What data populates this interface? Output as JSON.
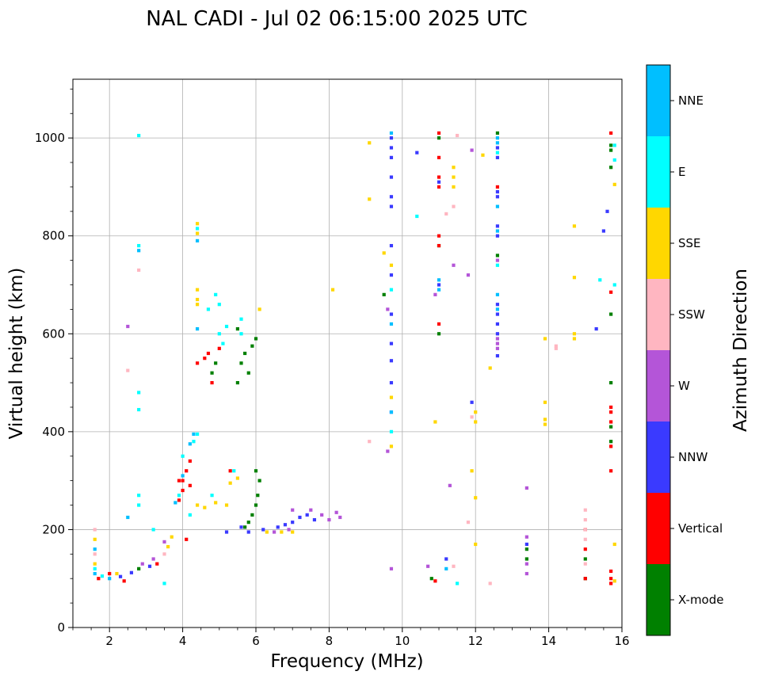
{
  "chart_data": {
    "type": "scatter",
    "title": "NAL CADI - Jul 02 06:15:00 2025 UTC",
    "xlabel": "Frequency (MHz)",
    "ylabel": "Virtual height (km)",
    "xlim": [
      1,
      16
    ],
    "ylim": [
      0,
      1120
    ],
    "xticks": [
      2,
      4,
      6,
      8,
      10,
      12,
      14,
      16
    ],
    "yticks": [
      0,
      200,
      400,
      600,
      800,
      1000
    ],
    "grid": true,
    "colorbar": {
      "label": "Azimuth Direction",
      "categories": [
        {
          "name": "X-mode",
          "color": "#008000"
        },
        {
          "name": "Vertical",
          "color": "#ff0000"
        },
        {
          "name": "NNW",
          "color": "#3a3aff"
        },
        {
          "name": "W",
          "color": "#b455d8"
        },
        {
          "name": "SSW",
          "color": "#ffb6c1"
        },
        {
          "name": "SSE",
          "color": "#ffd700"
        },
        {
          "name": "E",
          "color": "#00ffff"
        },
        {
          "name": "NNE",
          "color": "#00bfff"
        }
      ]
    },
    "series": [
      {
        "name": "X-mode",
        "points": [
          [
            5.5,
            500
          ],
          [
            5.6,
            540
          ],
          [
            5.8,
            520
          ],
          [
            5.7,
            560
          ],
          [
            5.9,
            575
          ],
          [
            6.0,
            590
          ],
          [
            5.5,
            610
          ],
          [
            6.0,
            250
          ],
          [
            6.05,
            270
          ],
          [
            6.1,
            300
          ],
          [
            6.0,
            320
          ],
          [
            5.9,
            230
          ],
          [
            5.8,
            215
          ],
          [
            5.7,
            205
          ],
          [
            15.0,
            100
          ],
          [
            15.0,
            140
          ],
          [
            15.7,
            640
          ],
          [
            15.7,
            500
          ],
          [
            15.7,
            380
          ],
          [
            15.7,
            410
          ],
          [
            15.7,
            940
          ],
          [
            15.7,
            975
          ],
          [
            15.7,
            985
          ],
          [
            12.6,
            1010
          ],
          [
            12.6,
            760
          ],
          [
            11.0,
            1000
          ],
          [
            11.0,
            600
          ],
          [
            11.0,
            780
          ],
          [
            9.5,
            680
          ],
          [
            10.8,
            100
          ],
          [
            13.4,
            140
          ],
          [
            13.4,
            160
          ],
          [
            4.9,
            540
          ],
          [
            4.8,
            520
          ],
          [
            2.8,
            120
          ]
        ]
      },
      {
        "name": "Vertical",
        "points": [
          [
            1.7,
            100
          ],
          [
            2.0,
            110
          ],
          [
            2.4,
            95
          ],
          [
            3.3,
            130
          ],
          [
            3.9,
            260
          ],
          [
            4.0,
            280
          ],
          [
            4.0,
            300
          ],
          [
            4.1,
            320
          ],
          [
            4.2,
            340
          ],
          [
            4.2,
            290
          ],
          [
            3.9,
            300
          ],
          [
            4.1,
            180
          ],
          [
            4.4,
            540
          ],
          [
            4.6,
            550
          ],
          [
            4.7,
            560
          ],
          [
            4.8,
            500
          ],
          [
            5.0,
            570
          ],
          [
            11.0,
            1010
          ],
          [
            11.0,
            960
          ],
          [
            11.0,
            920
          ],
          [
            11.0,
            900
          ],
          [
            11.0,
            800
          ],
          [
            11.0,
            780
          ],
          [
            11.0,
            620
          ],
          [
            12.6,
            900
          ],
          [
            15.0,
            160
          ],
          [
            15.0,
            100
          ],
          [
            15.0,
            200
          ],
          [
            15.7,
            450
          ],
          [
            15.7,
            440
          ],
          [
            15.7,
            420
          ],
          [
            15.7,
            370
          ],
          [
            15.7,
            320
          ],
          [
            15.7,
            1010
          ],
          [
            15.7,
            685
          ],
          [
            15.7,
            115
          ],
          [
            15.7,
            100
          ],
          [
            15.7,
            90
          ],
          [
            10.9,
            95
          ],
          [
            5.3,
            320
          ]
        ]
      },
      {
        "name": "NNW",
        "points": [
          [
            5.8,
            195
          ],
          [
            6.2,
            200
          ],
          [
            6.6,
            205
          ],
          [
            7.0,
            215
          ],
          [
            7.2,
            225
          ],
          [
            7.4,
            230
          ],
          [
            7.6,
            220
          ],
          [
            5.6,
            205
          ],
          [
            5.2,
            195
          ],
          [
            6.8,
            210
          ],
          [
            9.7,
            1000
          ],
          [
            9.7,
            980
          ],
          [
            9.7,
            960
          ],
          [
            9.7,
            920
          ],
          [
            9.7,
            880
          ],
          [
            9.7,
            860
          ],
          [
            9.7,
            780
          ],
          [
            9.7,
            720
          ],
          [
            9.7,
            640
          ],
          [
            9.7,
            545
          ],
          [
            9.7,
            500
          ],
          [
            9.7,
            440
          ],
          [
            9.7,
            580
          ],
          [
            12.6,
            980
          ],
          [
            12.6,
            960
          ],
          [
            12.6,
            890
          ],
          [
            12.6,
            880
          ],
          [
            12.6,
            820
          ],
          [
            12.6,
            800
          ],
          [
            12.6,
            660
          ],
          [
            12.6,
            640
          ],
          [
            12.6,
            620
          ],
          [
            12.6,
            600
          ],
          [
            12.6,
            555
          ],
          [
            11.0,
            700
          ],
          [
            11.0,
            910
          ],
          [
            11.9,
            460
          ],
          [
            15.6,
            850
          ],
          [
            15.5,
            810
          ],
          [
            15.3,
            610
          ],
          [
            11.2,
            140
          ],
          [
            13.4,
            170
          ],
          [
            2.6,
            112
          ],
          [
            3.1,
            125
          ],
          [
            2.3,
            104
          ],
          [
            10.4,
            970
          ]
        ]
      },
      {
        "name": "W",
        "points": [
          [
            7.0,
            240
          ],
          [
            7.8,
            230
          ],
          [
            8.2,
            235
          ],
          [
            8.0,
            220
          ],
          [
            7.5,
            240
          ],
          [
            8.3,
            225
          ],
          [
            6.5,
            195
          ],
          [
            6.9,
            200
          ],
          [
            12.6,
            580
          ],
          [
            12.6,
            570
          ],
          [
            12.6,
            590
          ],
          [
            12.6,
            750
          ],
          [
            13.4,
            130
          ],
          [
            13.4,
            185
          ],
          [
            13.4,
            110
          ],
          [
            13.4,
            285
          ],
          [
            9.6,
            650
          ],
          [
            9.6,
            360
          ],
          [
            10.7,
            125
          ],
          [
            11.8,
            720
          ],
          [
            10.9,
            680
          ],
          [
            11.3,
            290
          ],
          [
            11.9,
            975
          ],
          [
            11.4,
            740
          ],
          [
            2.9,
            130
          ],
          [
            3.2,
            140
          ],
          [
            3.5,
            175
          ],
          [
            2.5,
            615
          ],
          [
            9.7,
            120
          ]
        ]
      },
      {
        "name": "SSW",
        "points": [
          [
            15.0,
            180
          ],
          [
            15.0,
            220
          ],
          [
            15.0,
            240
          ],
          [
            15.0,
            130
          ],
          [
            15.0,
            200
          ],
          [
            14.2,
            575
          ],
          [
            14.2,
            570
          ],
          [
            12.4,
            90
          ],
          [
            11.8,
            215
          ],
          [
            11.9,
            430
          ],
          [
            11.2,
            845
          ],
          [
            11.4,
            860
          ],
          [
            11.5,
            1005
          ],
          [
            9.1,
            380
          ],
          [
            1.6,
            150
          ],
          [
            1.6,
            200
          ],
          [
            3.5,
            150
          ],
          [
            2.8,
            730
          ],
          [
            2.5,
            525
          ],
          [
            11.4,
            125
          ]
        ]
      },
      {
        "name": "SSE",
        "points": [
          [
            4.4,
            250
          ],
          [
            4.6,
            245
          ],
          [
            4.9,
            255
          ],
          [
            5.3,
            295
          ],
          [
            5.5,
            305
          ],
          [
            5.2,
            250
          ],
          [
            4.4,
            670
          ],
          [
            4.4,
            690
          ],
          [
            4.4,
            660
          ],
          [
            4.4,
            825
          ],
          [
            4.4,
            805
          ],
          [
            3.7,
            185
          ],
          [
            3.6,
            165
          ],
          [
            1.6,
            180
          ],
          [
            1.6,
            130
          ],
          [
            2.2,
            110
          ],
          [
            6.3,
            195
          ],
          [
            6.7,
            195
          ],
          [
            7.0,
            195
          ],
          [
            8.1,
            690
          ],
          [
            9.1,
            990
          ],
          [
            9.1,
            875
          ],
          [
            9.5,
            765
          ],
          [
            9.7,
            740
          ],
          [
            9.7,
            470
          ],
          [
            9.7,
            370
          ],
          [
            10.9,
            420
          ],
          [
            11.4,
            940
          ],
          [
            11.4,
            920
          ],
          [
            11.4,
            900
          ],
          [
            12.2,
            965
          ],
          [
            12.0,
            440
          ],
          [
            12.0,
            420
          ],
          [
            12.0,
            265
          ],
          [
            12.0,
            170
          ],
          [
            11.9,
            320
          ],
          [
            12.4,
            530
          ],
          [
            13.9,
            590
          ],
          [
            13.9,
            460
          ],
          [
            13.9,
            425
          ],
          [
            13.9,
            415
          ],
          [
            14.7,
            820
          ],
          [
            14.7,
            715
          ],
          [
            14.7,
            600
          ],
          [
            14.7,
            590
          ],
          [
            15.8,
            905
          ],
          [
            15.8,
            170
          ],
          [
            15.8,
            95
          ],
          [
            6.1,
            650
          ]
        ]
      },
      {
        "name": "E",
        "points": [
          [
            4.4,
            395
          ],
          [
            4.3,
            380
          ],
          [
            4.0,
            350
          ],
          [
            3.9,
            270
          ],
          [
            4.4,
            815
          ],
          [
            5.2,
            615
          ],
          [
            5.0,
            600
          ],
          [
            5.1,
            580
          ],
          [
            5.6,
            600
          ],
          [
            5.6,
            630
          ],
          [
            4.9,
            680
          ],
          [
            5.0,
            660
          ],
          [
            4.7,
            650
          ],
          [
            2.8,
            780
          ],
          [
            2.8,
            270
          ],
          [
            2.8,
            250
          ],
          [
            2.8,
            480
          ],
          [
            2.8,
            445
          ],
          [
            2.8,
            1005
          ],
          [
            3.2,
            200
          ],
          [
            3.5,
            90
          ],
          [
            4.2,
            230
          ],
          [
            4.8,
            270
          ],
          [
            5.4,
            320
          ],
          [
            9.7,
            400
          ],
          [
            9.7,
            690
          ],
          [
            10.4,
            840
          ],
          [
            11.5,
            90
          ],
          [
            12.6,
            970
          ],
          [
            15.4,
            710
          ],
          [
            15.8,
            700
          ],
          [
            15.8,
            955
          ],
          [
            15.8,
            985
          ],
          [
            12.6,
            740
          ],
          [
            1.6,
            120
          ],
          [
            1.8,
            105
          ]
        ]
      },
      {
        "name": "NNE",
        "points": [
          [
            4.4,
            610
          ],
          [
            4.4,
            790
          ],
          [
            4.3,
            395
          ],
          [
            4.2,
            375
          ],
          [
            4.0,
            310
          ],
          [
            3.8,
            255
          ],
          [
            1.6,
            110
          ],
          [
            1.6,
            160
          ],
          [
            2.0,
            100
          ],
          [
            2.8,
            770
          ],
          [
            12.6,
            1000
          ],
          [
            12.6,
            990
          ],
          [
            12.6,
            650
          ],
          [
            12.6,
            680
          ],
          [
            12.6,
            860
          ],
          [
            12.6,
            810
          ],
          [
            11.0,
            710
          ],
          [
            11.0,
            690
          ],
          [
            9.7,
            1010
          ],
          [
            9.7,
            620
          ],
          [
            9.7,
            440
          ],
          [
            11.2,
            120
          ],
          [
            2.5,
            225
          ]
        ]
      }
    ]
  }
}
